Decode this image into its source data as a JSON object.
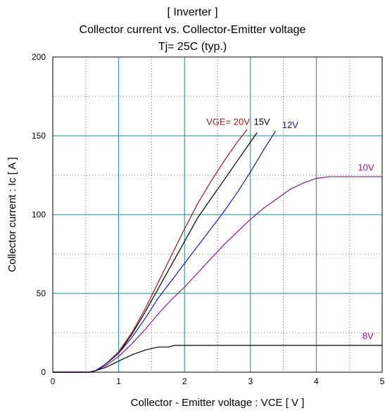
{
  "chart_data": {
    "type": "line",
    "title_lines": [
      "[ Inverter ]",
      "Collector current  vs.  Collector-Emitter voltage",
      "Tj= 25C  (typ.)"
    ],
    "xlabel": "Collector - Emitter voltage  :  VCE  [ V ]",
    "ylabel": "Collector current  :  Ic  [ A ]",
    "xlim": [
      0,
      5
    ],
    "ylim": [
      0,
      200
    ],
    "xticks": [
      0,
      1,
      2,
      3,
      4,
      5
    ],
    "yticks": [
      0,
      50,
      100,
      150,
      200
    ],
    "grid": true,
    "series": [
      {
        "name": "VGE= 20V",
        "color": "#a01818",
        "points": [
          [
            0,
            0
          ],
          [
            0.55,
            0
          ],
          [
            0.65,
            1
          ],
          [
            0.8,
            5
          ],
          [
            1.0,
            13
          ],
          [
            1.2,
            25
          ],
          [
            1.4,
            40
          ],
          [
            1.6,
            57
          ],
          [
            1.8,
            74
          ],
          [
            2.0,
            91
          ],
          [
            2.2,
            107
          ],
          [
            2.4,
            121
          ],
          [
            2.6,
            134
          ],
          [
            2.8,
            146
          ],
          [
            2.95,
            154
          ]
        ]
      },
      {
        "name": "15V",
        "color": "#000000",
        "points": [
          [
            0,
            0
          ],
          [
            0.55,
            0
          ],
          [
            0.65,
            1
          ],
          [
            0.8,
            5
          ],
          [
            1.0,
            12
          ],
          [
            1.2,
            24
          ],
          [
            1.4,
            38
          ],
          [
            1.6,
            53
          ],
          [
            1.8,
            68
          ],
          [
            2.0,
            83
          ],
          [
            2.2,
            98
          ],
          [
            2.4,
            110
          ],
          [
            2.6,
            122
          ],
          [
            2.8,
            134
          ],
          [
            3.0,
            146
          ],
          [
            3.1,
            152
          ]
        ]
      },
      {
        "name": "12V",
        "color": "#1020a0",
        "points": [
          [
            0,
            0
          ],
          [
            0.55,
            0
          ],
          [
            0.65,
            1
          ],
          [
            0.8,
            5
          ],
          [
            1.0,
            12
          ],
          [
            1.2,
            22
          ],
          [
            1.4,
            34
          ],
          [
            1.6,
            47
          ],
          [
            1.8,
            58
          ],
          [
            2.0,
            69
          ],
          [
            2.2,
            80
          ],
          [
            2.4,
            91
          ],
          [
            2.6,
            102
          ],
          [
            2.8,
            114
          ],
          [
            3.0,
            127
          ],
          [
            3.2,
            141
          ],
          [
            3.38,
            153
          ]
        ]
      },
      {
        "name": "10V",
        "color": "#8a1a8a",
        "points": [
          [
            0,
            0
          ],
          [
            0.55,
            0
          ],
          [
            0.65,
            1
          ],
          [
            0.8,
            4
          ],
          [
            1.0,
            10
          ],
          [
            1.2,
            18
          ],
          [
            1.4,
            27
          ],
          [
            1.6,
            37
          ],
          [
            1.8,
            46
          ],
          [
            2.0,
            54
          ],
          [
            2.2,
            63
          ],
          [
            2.4,
            72
          ],
          [
            2.6,
            81
          ],
          [
            2.8,
            89
          ],
          [
            3.0,
            97
          ],
          [
            3.2,
            104
          ],
          [
            3.4,
            110
          ],
          [
            3.6,
            116
          ],
          [
            3.8,
            120
          ],
          [
            4.0,
            123
          ],
          [
            4.2,
            124
          ],
          [
            4.5,
            124
          ],
          [
            5.0,
            124
          ]
        ]
      },
      {
        "name": "8V",
        "color": "#000000",
        "points": [
          [
            0,
            0
          ],
          [
            0.55,
            0
          ],
          [
            0.65,
            1
          ],
          [
            0.8,
            3
          ],
          [
            1.0,
            7
          ],
          [
            1.2,
            11
          ],
          [
            1.4,
            14
          ],
          [
            1.6,
            16
          ],
          [
            1.75,
            16
          ],
          [
            1.85,
            17
          ],
          [
            2.0,
            17
          ],
          [
            3.0,
            17
          ],
          [
            4.0,
            17
          ],
          [
            5.0,
            17
          ]
        ]
      }
    ],
    "labels": [
      {
        "text": "VGE= 20V",
        "x": 2.33,
        "y": 157,
        "color": "#a01818"
      },
      {
        "text": "15V",
        "x": 3.05,
        "y": 157,
        "color": "#000000"
      },
      {
        "text": "12V",
        "x": 3.48,
        "y": 155,
        "color": "#1020a0"
      },
      {
        "text": "10V",
        "x": 4.63,
        "y": 128,
        "color": "#8a1a8a"
      },
      {
        "text": "8V",
        "x": 4.7,
        "y": 21,
        "color": "#8a1a8a"
      }
    ]
  }
}
